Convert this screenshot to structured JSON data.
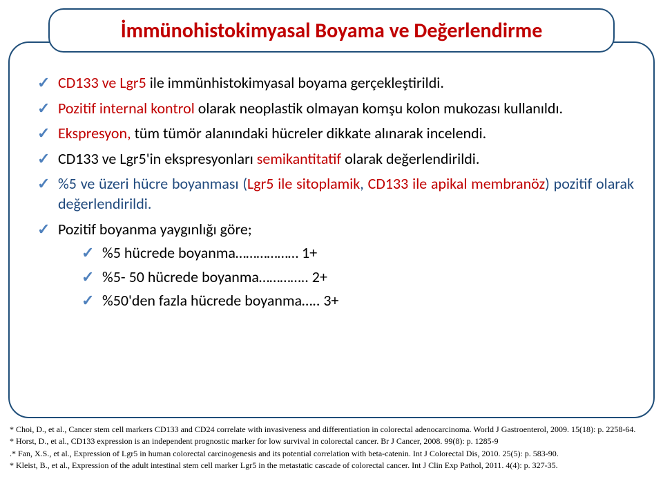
{
  "colors": {
    "accent_red": "#c00000",
    "accent_blue": "#1f497d",
    "border_blue": "#1f4e79",
    "check_blue": "#4f81bd",
    "text_black": "#000000",
    "background": "#ffffff"
  },
  "title": "İmmünohistokimyasal Boyama ve Değerlendirme",
  "bullets": {
    "b1a": "CD133 ve Lgr5 ",
    "b1b": "ile immünhistokimyasal boyama gerçekleştirildi.",
    "b2a": "Pozitif internal kontrol ",
    "b2b": "olarak neoplastik olmayan komşu kolon mukozası kullanıldı.",
    "b3a": "Ekspresyon, ",
    "b3b": "tüm tümör alanındaki hücreler dikkate alınarak incelendi.",
    "b4a": "CD133 ve Lgr5'in ekspresyonları ",
    "b4b": "semikantitatif ",
    "b4c": "olarak değerlendirildi.",
    "b5a": "%5 ve üzeri hücre boyanması (",
    "b5b": "Lgr5 ile sitoplamik",
    "b5c": ", ",
    "b5d": "CD133 ile apikal membranöz",
    "b5e": ") pozitif olarak değerlendirildi.",
    "b6": "Pozitif boyanma yaygınlığı göre;",
    "s1": "%5 hücrede boyanma……………… 1+",
    "s2": "%5- 50 hücrede boyanma………….. 2+",
    "s3": "%50'den fazla hücrede boyanma….. 3+"
  },
  "refs": {
    "r1": "* Choi, D., et al., Cancer stem cell markers CD133 and CD24 correlate with invasiveness and differentiation in colorectal adenocarcinoma. World J    Gastroenterol, 2009. 15(18): p. 2258-64.",
    "r2": "* Horst, D., et al., CD133 expression is an independent prognostic marker for low survival in colorectal cancer. Br J Cancer, 2008. 99(8): p.   1285-9",
    "r3": ".* Fan, X.S., et al., Expression of Lgr5 in human colorectal carcinogenesis and its potential correlation with beta-catenin. Int J Colorectal Dis, 2010.    25(5): p. 583-90.",
    "r4": "* Kleist, B., et al., Expression of the adult intestinal stem cell marker Lgr5 in the metastatic cascade of colorectal cancer. Int J Clin Exp Pathol, 2011.  4(4): p. 327-35."
  }
}
